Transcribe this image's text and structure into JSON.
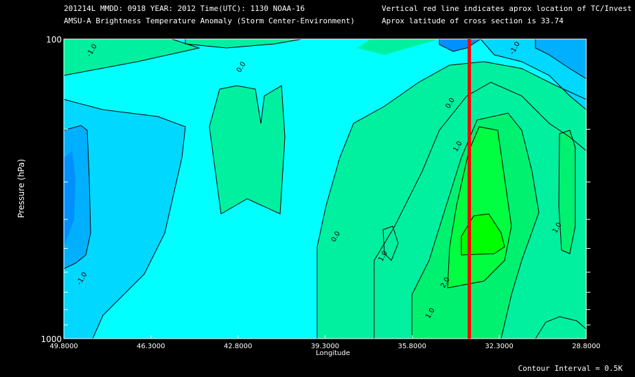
{
  "header": {
    "line1": "201214L  MMDD: 0918 YEAR: 2012 Time(UTC): 1130 NOAA-16",
    "line2": "AMSU-A Brightness Temperature Anomaly (Storm Center-Environment)",
    "line3": "Vertical red line indicates aprox location of TC/Invest",
    "line4": "Aprox latitude of cross section is 33.74"
  },
  "footer": {
    "contour_interval": "Contour Interval = 0.5K"
  },
  "colors": {
    "background": "#000000",
    "cyan": "#00ffff",
    "band_pos05": "#00f0a0",
    "band_pos15": "#00f070",
    "band_pos2": "#00ff40",
    "band_pos25": "#00ff00",
    "band_neg05": "#00d8ff",
    "band_neg1": "#00b0ff",
    "band_neg15": "#0090ff",
    "storm_line": "#ff0000",
    "contour": "#000000"
  },
  "chart_data": {
    "type": "contour",
    "title": "AMSU-A Brightness Temperature Anomaly (Storm Center-Environment)",
    "xlabel": "Longitude",
    "ylabel": "Pressure (hPa)",
    "x_ticks": [
      "49.8000",
      "46.3000",
      "42.8000",
      "39.3000",
      "35.8000",
      "32.3000",
      "28.8000"
    ],
    "x_tick_values": [
      49.8,
      46.3,
      42.8,
      39.3,
      35.8,
      32.3,
      28.8
    ],
    "xlim": [
      49.8,
      28.8
    ],
    "y_ticks": [
      "100",
      "1000"
    ],
    "ylim": [
      1000,
      100
    ],
    "y_scale": "log",
    "storm_longitude": 33.5,
    "contour_interval_K": 0.5,
    "contour_labels": [
      {
        "text": "-1.0",
        "lon": 48.6,
        "p": 110
      },
      {
        "text": "0.0",
        "lon": 42.6,
        "p": 125
      },
      {
        "text": "0.0",
        "lon": 34.2,
        "p": 165
      },
      {
        "text": "1.0",
        "lon": 33.9,
        "p": 230
      },
      {
        "text": "-1.0",
        "lon": 31.6,
        "p": 108
      },
      {
        "text": "0.0",
        "lon": 38.8,
        "p": 460
      },
      {
        "text": "1.0",
        "lon": 29.9,
        "p": 430
      },
      {
        "text": "1.0",
        "lon": 36.9,
        "p": 535
      },
      {
        "text": "-1.0",
        "lon": 49.0,
        "p": 635
      },
      {
        "text": "2.0",
        "lon": 34.4,
        "p": 655
      },
      {
        "text": "1.0",
        "lon": 35.0,
        "p": 830
      }
    ]
  }
}
